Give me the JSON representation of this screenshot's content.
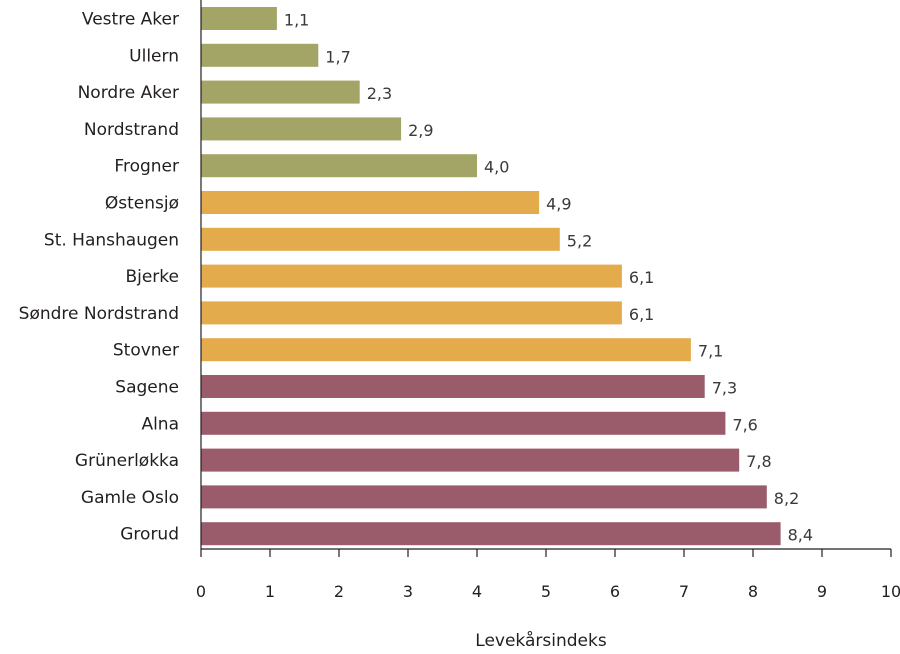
{
  "chart_data": {
    "type": "bar",
    "orientation": "horizontal",
    "categories": [
      "Vestre Aker",
      "Ullern",
      "Nordre Aker",
      "Nordstrand",
      "Frogner",
      "Østensjø",
      "St. Hanshaugen",
      "Bjerke",
      "Søndre Nordstrand",
      "Stovner",
      "Sagene",
      "Alna",
      "Grünerløkka",
      "Gamle Oslo",
      "Grorud"
    ],
    "values": [
      1.1,
      1.7,
      2.3,
      2.9,
      4.0,
      4.9,
      5.2,
      6.1,
      6.1,
      7.1,
      7.3,
      7.6,
      7.8,
      8.2,
      8.4
    ],
    "value_labels": [
      "1,1",
      "1,7",
      "2,3",
      "2,9",
      "4,0",
      "4,9",
      "5,2",
      "6,1",
      "6,1",
      "7,1",
      "7,3",
      "7,6",
      "7,8",
      "8,2",
      "8,4"
    ],
    "groups": [
      0,
      0,
      0,
      0,
      0,
      1,
      1,
      1,
      1,
      1,
      2,
      2,
      2,
      2,
      2
    ],
    "group_colors": [
      "#a3a566",
      "#e4ab4c",
      "#9a5b6a"
    ],
    "xlabel": "Levekårsindeks",
    "ylabel": "",
    "title": "",
    "xlim": [
      0,
      10
    ],
    "xticks": [
      "0",
      "1",
      "2",
      "3",
      "4",
      "5",
      "6",
      "7",
      "8",
      "9",
      "10"
    ],
    "grid": false
  }
}
